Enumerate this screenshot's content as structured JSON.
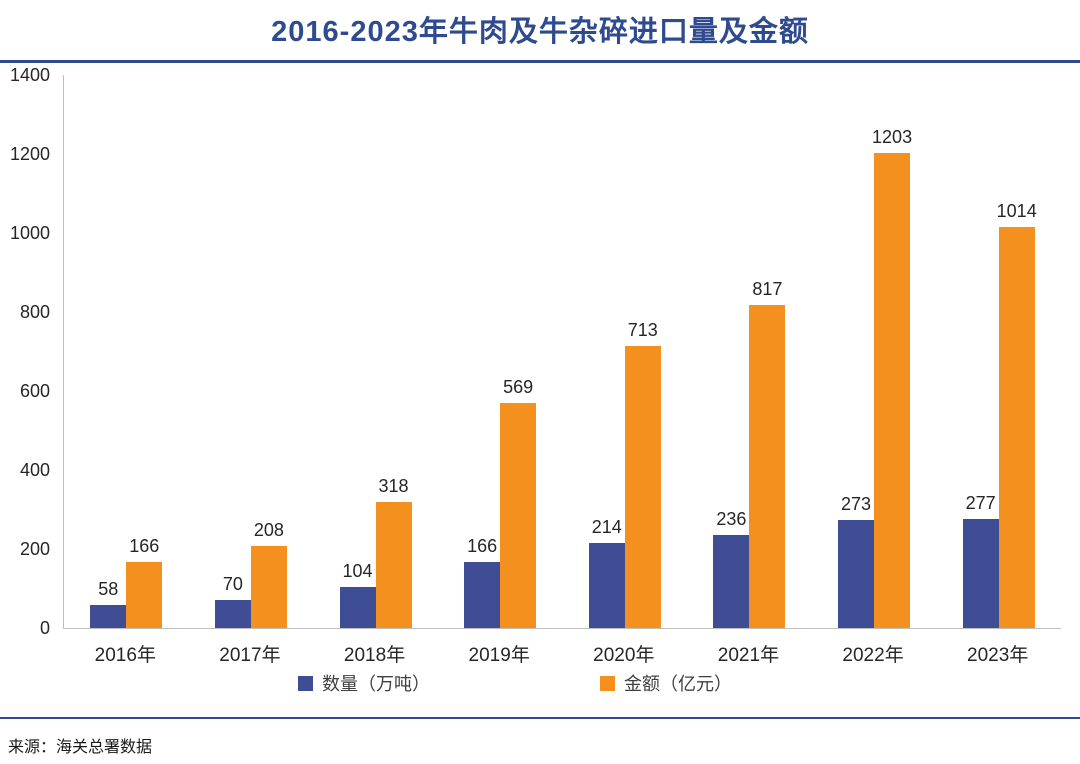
{
  "title": "2016-2023年牛肉及牛杂碎进口量及金额",
  "source": "来源：海关总署数据",
  "colors": {
    "title": "#2F4B8F",
    "divider": "#2F4B8F",
    "quantity_bar": "#3F4E94",
    "amount_bar": "#F4911E",
    "axis_line": "#BFBFBF",
    "text": "#262626"
  },
  "chart_data": {
    "type": "bar",
    "title": "2016-2023年牛肉及牛杂碎进口量及金额",
    "categories": [
      "2016年",
      "2017年",
      "2018年",
      "2019年",
      "2020年",
      "2021年",
      "2022年",
      "2023年"
    ],
    "series": [
      {
        "name": "数量（万吨）",
        "color": "#3F4E94",
        "values": [
          58,
          70,
          104,
          166,
          214,
          236,
          273,
          277
        ]
      },
      {
        "name": "金额（亿元）",
        "color": "#F4911E",
        "values": [
          166,
          208,
          318,
          569,
          713,
          817,
          1203,
          1014
        ]
      }
    ],
    "xlabel": "",
    "ylabel": "",
    "ylim": [
      0,
      1400
    ],
    "ytick_step": 200,
    "grid": false,
    "data_labels": true,
    "legend_position": "bottom",
    "source_note": "来源：海关总署数据"
  }
}
